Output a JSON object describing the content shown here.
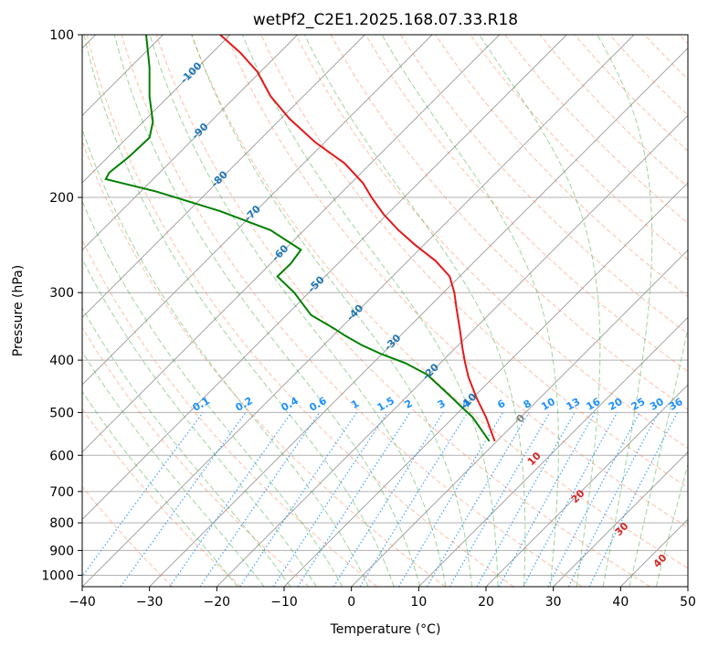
{
  "chart_data": {
    "type": "line",
    "title": "wetPf2_C2E1.2025.168.07.33.R18",
    "xlabel": "Temperature (°C)",
    "ylabel": "Pressure (hPa)",
    "xlim": [
      -40,
      50
    ],
    "ylim": [
      1050,
      100
    ],
    "y_scale": "log",
    "skew": true,
    "grid": true,
    "x_ticks": [
      -40,
      -30,
      -20,
      -10,
      0,
      10,
      20,
      30,
      40,
      50
    ],
    "y_ticks": [
      1000,
      900,
      800,
      700,
      600,
      500,
      400,
      300,
      200,
      100
    ],
    "dry_adiabat_labels": [
      -100,
      -90,
      -80,
      -70,
      -60,
      -50,
      -40,
      -30,
      -20,
      -10
    ],
    "mixing_ratio_labels": [
      "0.1",
      "0.2",
      "0.4",
      "0.6",
      "1",
      "1.5",
      "2",
      "3",
      "4",
      "6",
      "8",
      "10",
      "13",
      "16",
      "20",
      "25",
      "30",
      "36"
    ],
    "moist_adiabat_labels": [
      0,
      10,
      20,
      30,
      40
    ],
    "colors": {
      "temperature": "#e31a1c",
      "dewpoint": "#008000",
      "dry_adiabats": "#ff7f50",
      "moist_adiabats": "#2ca02c",
      "mixing_ratio": "#1e90ff",
      "isotherms": "#7f7f7f",
      "dry_label": "#1f77b4",
      "moist_label": "#d62728"
    },
    "series": [
      {
        "type": "temperature",
        "points": [
          [
            21.3,
            565
          ],
          [
            20.0,
            510
          ],
          [
            18.6,
            470
          ],
          [
            17.4,
            430
          ],
          [
            16.9,
            405
          ],
          [
            16.5,
            380
          ],
          [
            16.1,
            350
          ],
          [
            15.6,
            320
          ],
          [
            15.3,
            300
          ],
          [
            14.6,
            280
          ],
          [
            12.5,
            262
          ],
          [
            9.5,
            245
          ],
          [
            7.0,
            230
          ],
          [
            4.8,
            215
          ],
          [
            3.0,
            200
          ],
          [
            1.7,
            188
          ],
          [
            -1.0,
            173
          ],
          [
            -5.4,
            158
          ],
          [
            -9.2,
            143
          ],
          [
            -12.0,
            130
          ],
          [
            -14.0,
            117
          ],
          [
            -16.5,
            108
          ],
          [
            -19.5,
            100
          ]
        ]
      },
      {
        "type": "dewpoint",
        "points": [
          [
            20.5,
            565
          ],
          [
            18.0,
            510
          ],
          [
            16.5,
            490
          ],
          [
            14.2,
            460
          ],
          [
            11.2,
            425
          ],
          [
            8.0,
            405
          ],
          [
            4.5,
            390
          ],
          [
            1.5,
            375
          ],
          [
            -1.0,
            360
          ],
          [
            -2.5,
            350
          ],
          [
            -6.0,
            330
          ],
          [
            -8.5,
            300
          ],
          [
            -11.0,
            280
          ],
          [
            -9.0,
            265
          ],
          [
            -7.5,
            250
          ],
          [
            -12.0,
            230
          ],
          [
            -19.5,
            212
          ],
          [
            -29.0,
            195
          ],
          [
            -36.5,
            185
          ],
          [
            -36.0,
            180
          ],
          [
            -33.0,
            168
          ],
          [
            -30.0,
            155
          ],
          [
            -29.5,
            145
          ],
          [
            -30.0,
            130
          ],
          [
            -30.0,
            115
          ],
          [
            -30.5,
            100
          ]
        ]
      }
    ]
  }
}
